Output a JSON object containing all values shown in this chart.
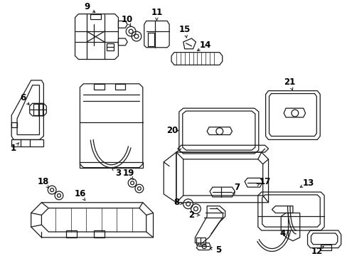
{
  "bg_color": "#ffffff",
  "line_color": "#1a1a1a",
  "text_color": "#000000",
  "lw": 0.9,
  "fontsize": 8.5
}
